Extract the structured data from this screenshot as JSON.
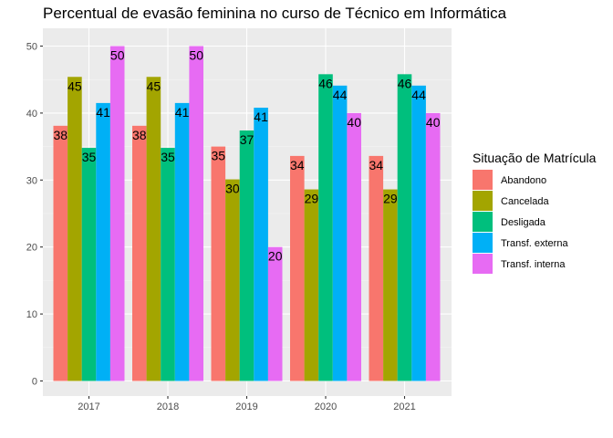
{
  "chart_data": {
    "type": "bar",
    "title": "Percentual de evasão feminina no curso de Técnico em Informática",
    "xlabel": "",
    "ylabel": "",
    "categories": [
      "2017",
      "2018",
      "2019",
      "2020",
      "2021"
    ],
    "ylim": [
      0,
      52
    ],
    "yticks": [
      0,
      10,
      20,
      30,
      40,
      50
    ],
    "grid": true,
    "legend": {
      "title": "Situação de Matrícula",
      "position": "right"
    },
    "series": [
      {
        "name": "Abandono",
        "color": "#F8766D",
        "values": [
          38.1,
          38.1,
          35.0,
          33.6,
          33.6
        ],
        "labels": [
          "38",
          "38",
          "35",
          "34",
          "34"
        ]
      },
      {
        "name": "Cancelada",
        "color": "#A3A500",
        "values": [
          45.4,
          45.4,
          30.1,
          28.6,
          28.6
        ],
        "labels": [
          "45",
          "45",
          "30",
          "29",
          "29"
        ]
      },
      {
        "name": "Desligada",
        "color": "#00BF7D",
        "values": [
          34.8,
          34.8,
          37.4,
          45.8,
          45.8
        ],
        "labels": [
          "35",
          "35",
          "37",
          "46",
          "46"
        ]
      },
      {
        "name": "Transf. externa",
        "color": "#00B0F6",
        "values": [
          41.5,
          41.5,
          40.8,
          44.1,
          44.1
        ],
        "labels": [
          "41",
          "41",
          "41",
          "44",
          "44"
        ]
      },
      {
        "name": "Transf. interna",
        "color": "#E76BF3",
        "values": [
          50.0,
          50.0,
          20.0,
          40.0,
          40.0
        ],
        "labels": [
          "50",
          "50",
          "20",
          "40",
          "40"
        ]
      }
    ]
  }
}
